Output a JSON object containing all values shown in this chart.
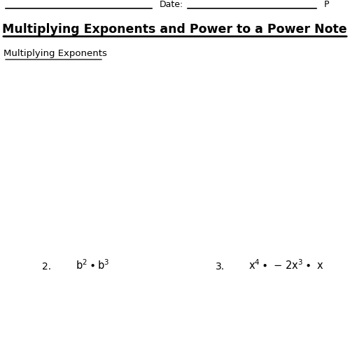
{
  "bg_color": "#ffffff",
  "title": "Multiplying Exponents and Power to a Power Note",
  "title_fontsize": 12.5,
  "header_date_text": "Date:",
  "header_right_text": "P",
  "section_heading": "Multiplying Exponents",
  "problem2_label": "2.",
  "problem3_label": "3.",
  "line_color": "#000000",
  "text_color": "#000000",
  "figsize": [
    5.0,
    5.0
  ],
  "dpi": 100
}
